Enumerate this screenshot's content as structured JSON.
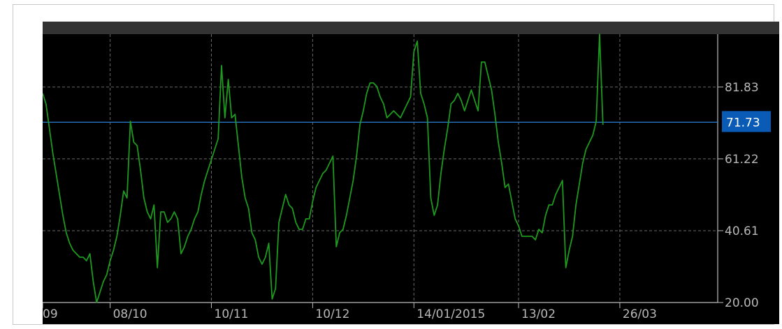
{
  "chart_data": {
    "type": "line",
    "title": "",
    "xlabel": "",
    "ylabel": "",
    "ylim": [
      20.0,
      97.0
    ],
    "y_ticks": [
      {
        "label": "81.83",
        "value": 81.83
      },
      {
        "label": "61.22",
        "value": 61.22
      },
      {
        "label": "40.61",
        "value": 40.61
      },
      {
        "label": "20.00",
        "value": 20.0
      }
    ],
    "x_ticks": [
      {
        "label": "09",
        "index": 0
      },
      {
        "label": "08/10",
        "index": 20
      },
      {
        "label": "10/11",
        "index": 50
      },
      {
        "label": "10/12",
        "index": 80
      },
      {
        "label": "14/01/2015",
        "index": 110
      },
      {
        "label": "13/02",
        "index": 141
      },
      {
        "label": "26/03",
        "index": 171
      }
    ],
    "x_count": 201,
    "series": [
      {
        "color": "#1e9a1e",
        "values": [
          80,
          77,
          70,
          63,
          57,
          51,
          45,
          40,
          37,
          35,
          34,
          33,
          33,
          32,
          34,
          26,
          20,
          23,
          26,
          28,
          32,
          35,
          39,
          45,
          52,
          50,
          72,
          66,
          65,
          58,
          50,
          46,
          44,
          48,
          30,
          46,
          46,
          43,
          44,
          46,
          44,
          34,
          36,
          39,
          41,
          44,
          46,
          51,
          55,
          58,
          61,
          64,
          67,
          88,
          73,
          84,
          73,
          74,
          65,
          56,
          50,
          47,
          40,
          38,
          33,
          31,
          33,
          37,
          21,
          24,
          43,
          47,
          51,
          48,
          47,
          43,
          41,
          41,
          44,
          44,
          49,
          53,
          55,
          57,
          58,
          60,
          62,
          36,
          40,
          41,
          45,
          50,
          55,
          62,
          71,
          75,
          80,
          83,
          83,
          82,
          79,
          77,
          73,
          74,
          75,
          74,
          73,
          75,
          77,
          79,
          92,
          95,
          80,
          77,
          73,
          50,
          45,
          48,
          57,
          64,
          70,
          77,
          78,
          80,
          78,
          75,
          78,
          81,
          78,
          75,
          89,
          89,
          85,
          81,
          74,
          66,
          60,
          53,
          54,
          49,
          44,
          42,
          39,
          39,
          39,
          39,
          38,
          41,
          40,
          45,
          48,
          48,
          51,
          53,
          55,
          30,
          35,
          39,
          48,
          54,
          60,
          64,
          66,
          68,
          72,
          97,
          71
        ]
      }
    ],
    "last_value": {
      "label": "71.73",
      "value": 71.73,
      "color": "#0a5bb5"
    },
    "horizontal_line": {
      "value": 71.73,
      "color": "#2a7fd4"
    },
    "grid": true,
    "background": "#000000",
    "header_bar_color": "#333333"
  }
}
